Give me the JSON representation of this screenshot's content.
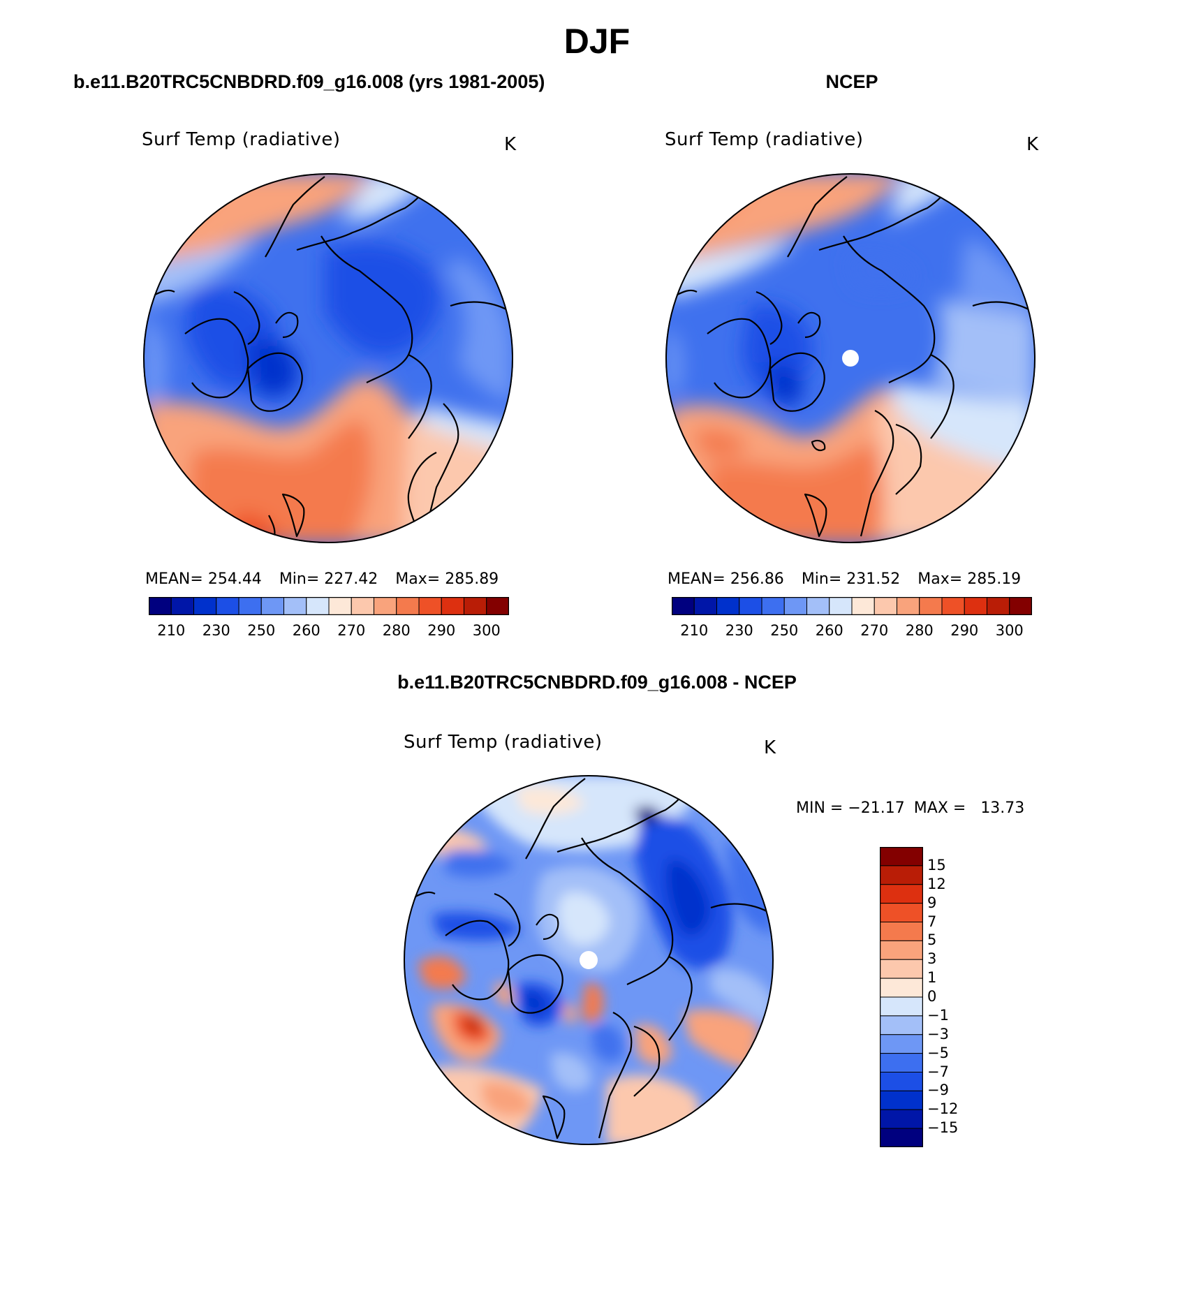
{
  "page": {
    "title": "DJF"
  },
  "panels": {
    "model": {
      "header": "b.e11.B20TRC5CNBDRD.f09_g16.008 (yrs 1981-2005)",
      "variable": "Surf Temp (radiative)",
      "units": "K",
      "stats": {
        "mean_label": "MEAN=",
        "mean": "254.44",
        "min_label": "Min=",
        "min": "227.42",
        "max_label": "Max=",
        "max": "285.89"
      },
      "colorbar": {
        "colors": [
          "#00007f",
          "#0016a8",
          "#0031cc",
          "#1c4fe6",
          "#3d6ff0",
          "#6e97f5",
          "#a3bff8",
          "#d6e6fb",
          "#fde8d8",
          "#fcc8ad",
          "#f9a37c",
          "#f47a4d",
          "#ee5127",
          "#dd3010",
          "#b91d06",
          "#830000"
        ],
        "tick_labels": [
          "210",
          "230",
          "250",
          "260",
          "270",
          "280",
          "290",
          "300"
        ]
      },
      "pole_marker": false
    },
    "obs": {
      "header": "NCEP",
      "variable": "Surf Temp (radiative)",
      "units": "K",
      "stats": {
        "mean_label": "MEAN=",
        "mean": "256.86",
        "min_label": "Min=",
        "min": "231.52",
        "max_label": "Max=",
        "max": "285.19"
      },
      "colorbar": {
        "colors": [
          "#00007f",
          "#0016a8",
          "#0031cc",
          "#1c4fe6",
          "#3d6ff0",
          "#6e97f5",
          "#a3bff8",
          "#d6e6fb",
          "#fde8d8",
          "#fcc8ad",
          "#f9a37c",
          "#f47a4d",
          "#ee5127",
          "#dd3010",
          "#b91d06",
          "#830000"
        ],
        "tick_labels": [
          "210",
          "230",
          "250",
          "260",
          "270",
          "280",
          "290",
          "300"
        ]
      },
      "pole_marker": true
    },
    "diff": {
      "header": "b.e11.B20TRC5CNBDRD.f09_g16.008 - NCEP",
      "variable": "Surf Temp (radiative)",
      "units": "K",
      "stats": {
        "min_label": "MIN =",
        "min": "−21.17",
        "max_label": "MAX =",
        "max": "13.73"
      },
      "colorbar": {
        "colors_top_to_bottom": [
          "#830000",
          "#b91d06",
          "#dd3010",
          "#ee5127",
          "#f47a4d",
          "#f9a37c",
          "#fcc8ad",
          "#fde8d8",
          "#d6e6fb",
          "#a3bff8",
          "#6e97f5",
          "#3d6ff0",
          "#1c4fe6",
          "#0031cc",
          "#0016a8",
          "#00007f"
        ],
        "tick_labels": [
          "15",
          "12",
          "9",
          "7",
          "5",
          "3",
          "1",
          "0",
          "−1",
          "−3",
          "−5",
          "−7",
          "−9",
          "−12",
          "−15"
        ]
      },
      "pole_marker": true
    }
  }
}
